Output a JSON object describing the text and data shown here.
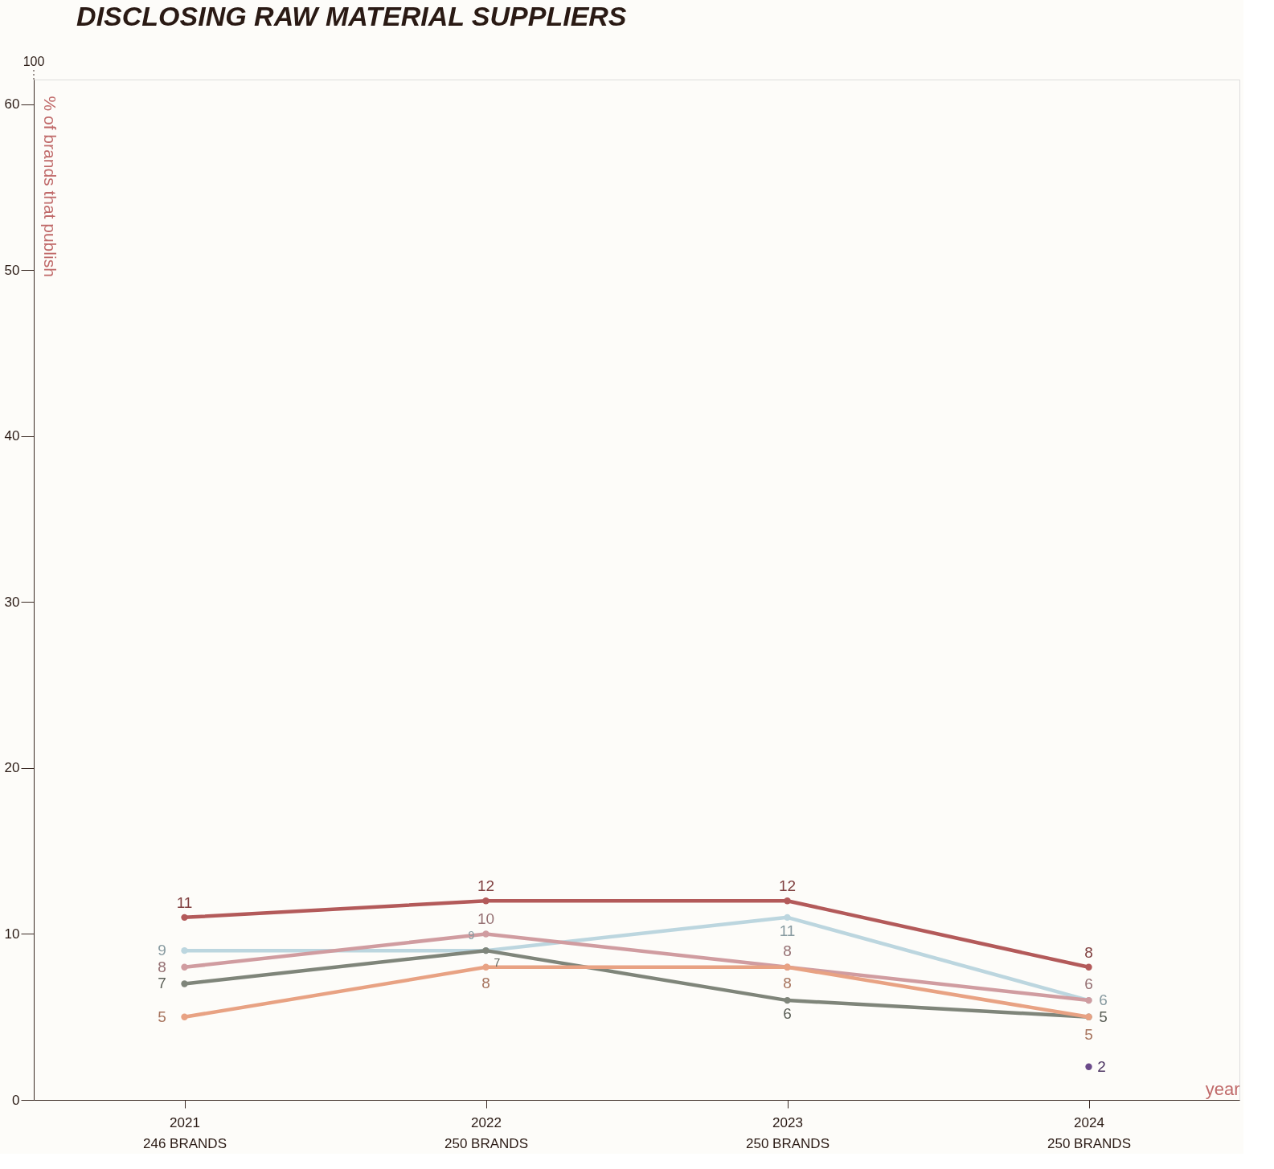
{
  "chart_data": {
    "type": "line",
    "title": "DISCLOSING RAW MATERIAL SUPPLIERS",
    "categories": [
      "2021\n246 BRANDS",
      "2022\n250 BRANDS",
      "2023\n250 BRANDS",
      "2024\n250 BRANDS"
    ],
    "xlabel": "year",
    "ylabel": "% of brands that publish",
    "ylim": [
      0,
      61.5
    ],
    "yticks": [
      0,
      10,
      20,
      30,
      40,
      50,
      60
    ],
    "annotations": [
      "100",
      {
        "text": "7",
        "x": "2022\n250 BRANDS",
        "y": 9
      }
    ],
    "grid": false,
    "marker": "circle",
    "line_style": "solid",
    "series": [
      {
        "color": "#b35a5a",
        "values": [
          11,
          12,
          12,
          8
        ],
        "value_labels": [
          "11",
          "12",
          "12",
          "8"
        ]
      },
      {
        "color": "#bcd6df",
        "values": [
          9,
          9,
          11,
          6
        ],
        "value_labels": [
          "9",
          "9",
          "11",
          "6"
        ]
      },
      {
        "color": "#d09ca0",
        "values": [
          8,
          10,
          8,
          6
        ],
        "value_labels": [
          "8",
          "10",
          "8",
          "6"
        ]
      },
      {
        "color": "#7f857a",
        "values": [
          7,
          9,
          6,
          5
        ],
        "value_labels": [
          "7",
          null,
          "6",
          "5"
        ]
      },
      {
        "color": "#e8a283",
        "values": [
          5,
          8,
          8,
          5
        ],
        "value_labels": [
          "5",
          "8",
          "8",
          "5"
        ]
      },
      {
        "color": "#6b4a8a",
        "values": [
          null,
          null,
          null,
          2
        ],
        "value_labels": [
          null,
          null,
          null,
          "2"
        ]
      }
    ]
  }
}
